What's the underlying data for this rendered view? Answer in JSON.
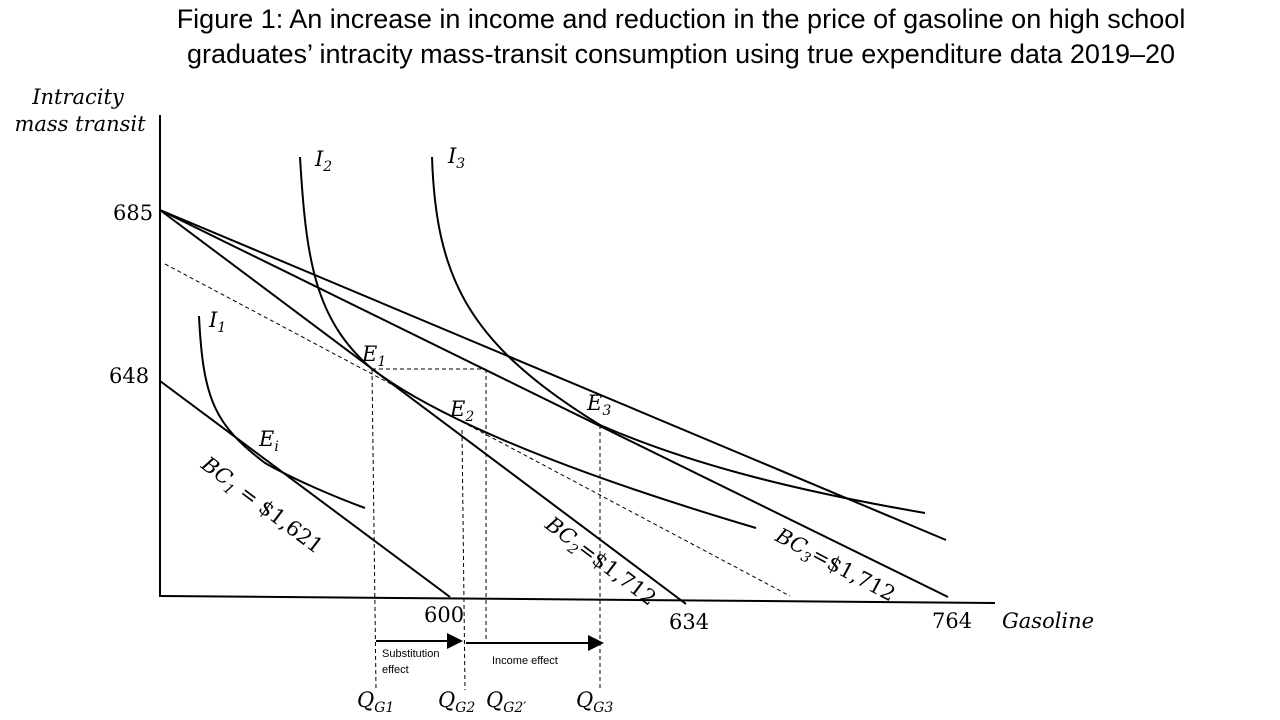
{
  "title_line1": "Figure 1: An increase in income and reduction in the price of gasoline on high school",
  "title_line2": "graduates’ intracity mass-transit consumption using true expenditure data 2019–20",
  "axes": {
    "y_label_line1": "Intracity",
    "y_label_line2": "mass transit",
    "x_label": "Gasoline",
    "y_ticks": [
      "685",
      "648"
    ],
    "x_ticks": [
      "600",
      "634",
      "764"
    ]
  },
  "curves": {
    "i1": {
      "base": "I",
      "sub": "1"
    },
    "i2": {
      "base": "I",
      "sub": "2"
    },
    "i3": {
      "base": "I",
      "sub": "3"
    }
  },
  "points": {
    "ei": {
      "base": "E",
      "sub": "i"
    },
    "e1": {
      "base": "E",
      "sub": "1"
    },
    "e2": {
      "base": "E",
      "sub": "2"
    },
    "e3": {
      "base": "E",
      "sub": "3"
    }
  },
  "budget": {
    "bc1": {
      "base": "BC",
      "sub": "1",
      "rest": " = $1,621"
    },
    "bc2": {
      "base": "BC",
      "sub": "2",
      "rest": "=$1,712"
    },
    "bc3": {
      "base": "BC",
      "sub": "3",
      "rest": "=$1,712"
    }
  },
  "quantities": {
    "qg1": {
      "base": "Q",
      "sub": "G1"
    },
    "qg2": {
      "base": "Q",
      "sub": "G2"
    },
    "qg2p": {
      "base": "Q",
      "sub": "G2′"
    },
    "qg3": {
      "base": "Q",
      "sub": "G3"
    }
  },
  "effects": {
    "substitution_line1": "Substitution",
    "substitution_line2": "effect",
    "income": "Income effect"
  }
}
